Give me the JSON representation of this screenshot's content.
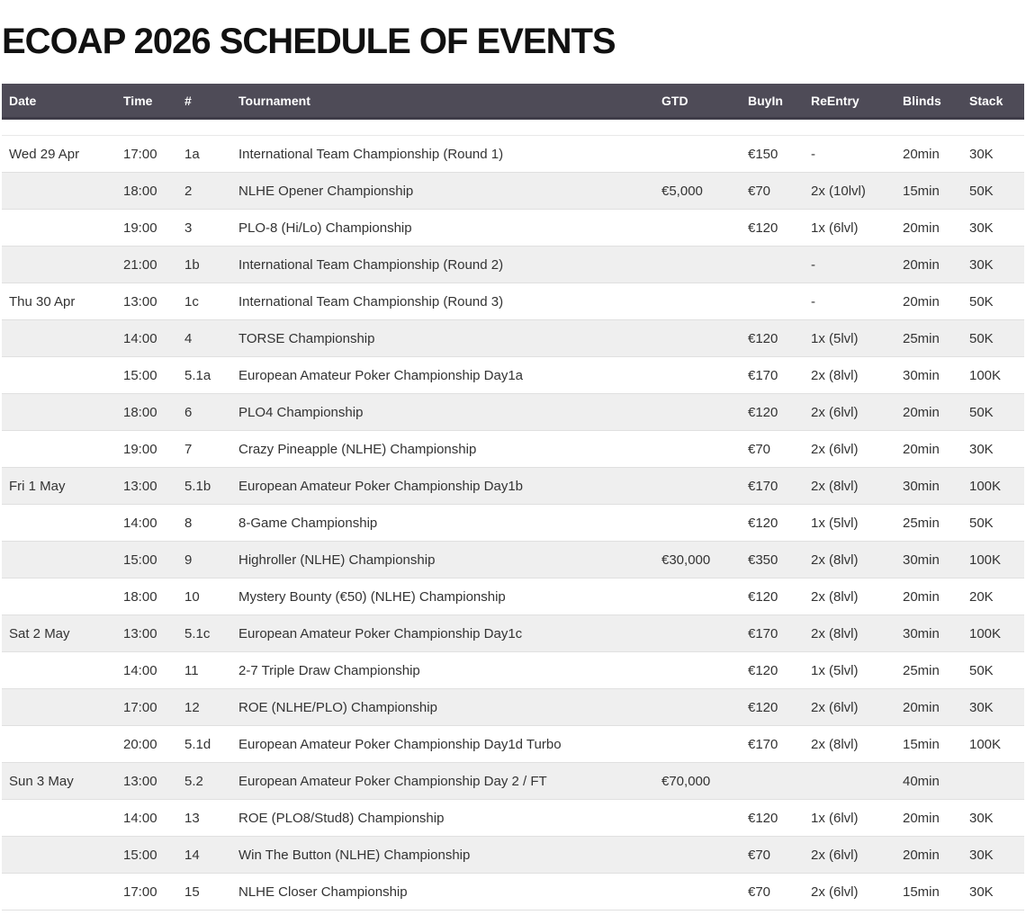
{
  "page": {
    "title": "ECOAP 2026 SCHEDULE OF EVENTS"
  },
  "colors": {
    "header_bg": "#4e4b57",
    "header_border": "#3f3c48",
    "header_text": "#ffffff",
    "row_stripe": "#efefef",
    "row_plain": "#ffffff",
    "row_border": "#e0e0e0",
    "title_color": "#111111",
    "body_text": "#333333"
  },
  "schedule_table": {
    "columns": [
      {
        "key": "date",
        "label": "Date"
      },
      {
        "key": "time",
        "label": "Time"
      },
      {
        "key": "num",
        "label": "#"
      },
      {
        "key": "tournament",
        "label": "Tournament"
      },
      {
        "key": "gtd",
        "label": "GTD"
      },
      {
        "key": "buyin",
        "label": "BuyIn"
      },
      {
        "key": "reentry",
        "label": "ReEntry"
      },
      {
        "key": "blinds",
        "label": "Blinds"
      },
      {
        "key": "stack",
        "label": "Stack"
      }
    ],
    "rows": [
      {
        "date": "Wed 29 Apr",
        "time": "17:00",
        "num": "1a",
        "tournament": "International Team Championship (Round 1)",
        "gtd": "",
        "buyin": "€150",
        "reentry": "-",
        "blinds": "20min",
        "stack": "30K"
      },
      {
        "date": "",
        "time": "18:00",
        "num": "2",
        "tournament": "NLHE Opener Championship",
        "gtd": "€5,000",
        "buyin": "€70",
        "reentry": "2x (10lvl)",
        "blinds": "15min",
        "stack": "50K"
      },
      {
        "date": "",
        "time": "19:00",
        "num": "3",
        "tournament": "PLO-8 (Hi/Lo) Championship",
        "gtd": "",
        "buyin": "€120",
        "reentry": "1x (6lvl)",
        "blinds": "20min",
        "stack": "30K"
      },
      {
        "date": "",
        "time": "21:00",
        "num": "1b",
        "tournament": "International Team Championship (Round 2)",
        "gtd": "",
        "buyin": "",
        "reentry": "-",
        "blinds": "20min",
        "stack": "30K"
      },
      {
        "date": "Thu 30 Apr",
        "time": "13:00",
        "num": "1c",
        "tournament": "International Team Championship (Round 3)",
        "gtd": "",
        "buyin": "",
        "reentry": "-",
        "blinds": "20min",
        "stack": "50K"
      },
      {
        "date": "",
        "time": "14:00",
        "num": "4",
        "tournament": "TORSE Championship",
        "gtd": "",
        "buyin": "€120",
        "reentry": "1x (5lvl)",
        "blinds": "25min",
        "stack": "50K"
      },
      {
        "date": "",
        "time": "15:00",
        "num": "5.1a",
        "tournament": "European Amateur Poker Championship Day1a",
        "gtd": "",
        "buyin": "€170",
        "reentry": "2x (8lvl)",
        "blinds": "30min",
        "stack": "100K"
      },
      {
        "date": "",
        "time": "18:00",
        "num": "6",
        "tournament": "PLO4 Championship",
        "gtd": "",
        "buyin": "€120",
        "reentry": "2x (6lvl)",
        "blinds": "20min",
        "stack": "50K"
      },
      {
        "date": "",
        "time": "19:00",
        "num": "7",
        "tournament": "Crazy Pineapple (NLHE) Championship",
        "gtd": "",
        "buyin": "€70",
        "reentry": "2x (6lvl)",
        "blinds": "20min",
        "stack": "30K"
      },
      {
        "date": "Fri 1 May",
        "time": "13:00",
        "num": "5.1b",
        "tournament": "European Amateur Poker Championship Day1b",
        "gtd": "",
        "buyin": "€170",
        "reentry": "2x (8lvl)",
        "blinds": "30min",
        "stack": "100K"
      },
      {
        "date": "",
        "time": "14:00",
        "num": "8",
        "tournament": "8-Game Championship",
        "gtd": "",
        "buyin": "€120",
        "reentry": "1x (5lvl)",
        "blinds": "25min",
        "stack": "50K"
      },
      {
        "date": "",
        "time": "15:00",
        "num": "9",
        "tournament": "Highroller (NLHE) Championship",
        "gtd": "€30,000",
        "buyin": "€350",
        "reentry": "2x (8lvl)",
        "blinds": "30min",
        "stack": "100K"
      },
      {
        "date": "",
        "time": "18:00",
        "num": "10",
        "tournament": "Mystery Bounty (€50) (NLHE) Championship",
        "gtd": "",
        "buyin": "€120",
        "reentry": "2x (8lvl)",
        "blinds": "20min",
        "stack": "20K"
      },
      {
        "date": "Sat 2 May",
        "time": "13:00",
        "num": "5.1c",
        "tournament": "European Amateur Poker Championship Day1c",
        "gtd": "",
        "buyin": "€170",
        "reentry": "2x (8lvl)",
        "blinds": "30min",
        "stack": "100K"
      },
      {
        "date": "",
        "time": "14:00",
        "num": "11",
        "tournament": "2-7 Triple Draw Championship",
        "gtd": "",
        "buyin": "€120",
        "reentry": "1x (5lvl)",
        "blinds": "25min",
        "stack": "50K"
      },
      {
        "date": "",
        "time": "17:00",
        "num": "12",
        "tournament": "ROE (NLHE/PLO) Championship",
        "gtd": "",
        "buyin": "€120",
        "reentry": "2x (6lvl)",
        "blinds": "20min",
        "stack": "30K"
      },
      {
        "date": "",
        "time": "20:00",
        "num": "5.1d",
        "tournament": "European Amateur Poker Championship Day1d Turbo",
        "gtd": "",
        "buyin": "€170",
        "reentry": "2x (8lvl)",
        "blinds": "15min",
        "stack": "100K"
      },
      {
        "date": "Sun 3 May",
        "time": "13:00",
        "num": "5.2",
        "tournament": "European Amateur Poker Championship Day 2 / FT",
        "gtd": "€70,000",
        "buyin": "",
        "reentry": "",
        "blinds": "40min",
        "stack": ""
      },
      {
        "date": "",
        "time": "14:00",
        "num": "13",
        "tournament": "ROE (PLO8/Stud8) Championship",
        "gtd": "",
        "buyin": "€120",
        "reentry": "1x (6lvl)",
        "blinds": "20min",
        "stack": "30K"
      },
      {
        "date": "",
        "time": "15:00",
        "num": "14",
        "tournament": "Win The Button (NLHE) Championship",
        "gtd": "",
        "buyin": "€70",
        "reentry": "2x (6lvl)",
        "blinds": "20min",
        "stack": "30K"
      },
      {
        "date": "",
        "time": "17:00",
        "num": "15",
        "tournament": "NLHE Closer Championship",
        "gtd": "",
        "buyin": "€70",
        "reentry": "2x (6lvl)",
        "blinds": "15min",
        "stack": "30K"
      }
    ]
  }
}
